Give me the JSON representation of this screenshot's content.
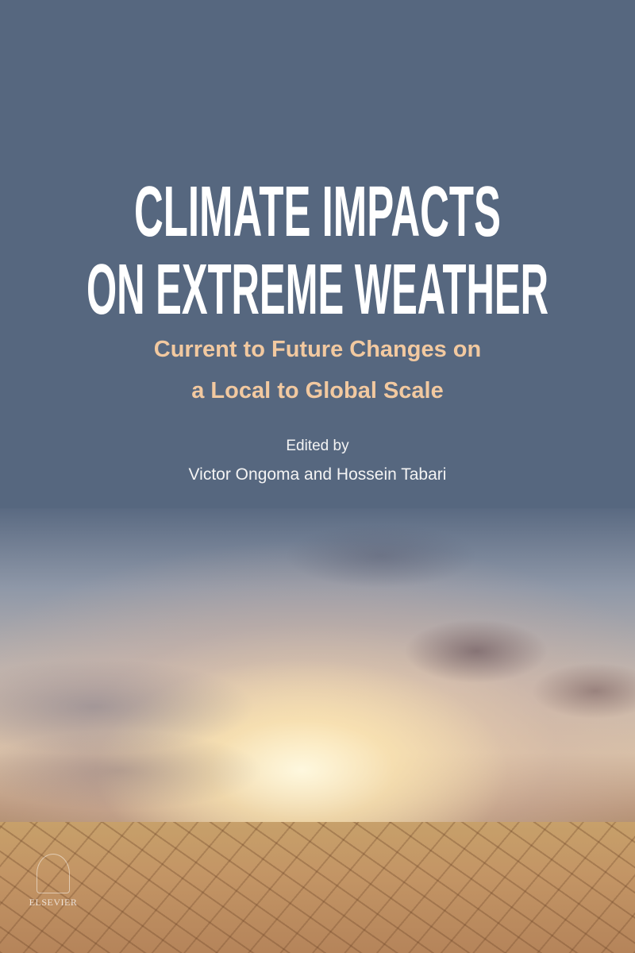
{
  "cover": {
    "title_line1": "CLIMATE IMPACTS",
    "title_line2": "ON EXTREME WEATHER",
    "subtitle_line1": "Current to Future Changes on",
    "subtitle_line2": "a Local to Global Scale",
    "edited_by": "Edited by",
    "editors": "Victor Ongoma and Hossein Tabari",
    "publisher": "ELSEVIER"
  },
  "colors": {
    "background": "#56677f",
    "title": "#ffffff",
    "subtitle": "#f2c9a0"
  }
}
